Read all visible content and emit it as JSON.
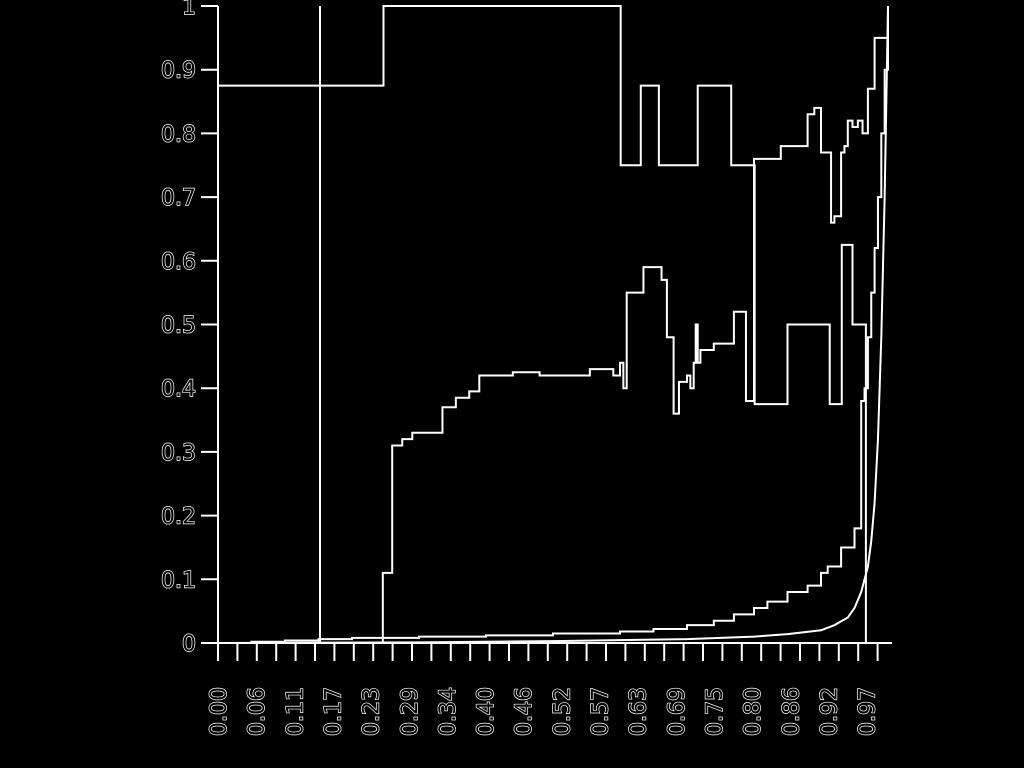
{
  "chart_data": {
    "type": "line",
    "title": "",
    "xlabel": "",
    "ylabel": "",
    "xlim": [
      0.0,
      1.0
    ],
    "ylim": [
      0.0,
      1.0
    ],
    "grid": false,
    "legend": "none",
    "colors": {
      "background": "#000000",
      "foreground": "#ffffff"
    },
    "x_ticks": [
      "0.00",
      "0.06",
      "0.11",
      "0.17",
      "0.23",
      "0.29",
      "0.34",
      "0.40",
      "0.46",
      "0.52",
      "0.57",
      "0.63",
      "0.69",
      "0.75",
      "0.80",
      "0.86",
      "0.92",
      "0.97"
    ],
    "y_ticks": [
      "0",
      "0.1",
      "0.2",
      "0.3",
      "0.4",
      "0.5",
      "0.6",
      "0.7",
      "0.8",
      "0.9",
      "1"
    ],
    "series": [
      {
        "step": true,
        "x": [
          0.0,
          0.154,
          0.155,
          0.246,
          0.247,
          0.6,
          0.601,
          0.63,
          0.631,
          0.657,
          0.658,
          0.715,
          0.716,
          0.765,
          0.766,
          0.8,
          0.801,
          0.849,
          0.85,
          0.912,
          0.913,
          0.93,
          0.931,
          0.946,
          0.947,
          0.966,
          0.967,
          1.0
        ],
        "y": [
          0.875,
          0.875,
          0.875,
          0.875,
          1.0,
          1.0,
          0.75,
          0.75,
          0.875,
          0.875,
          0.75,
          0.75,
          0.875,
          0.875,
          0.75,
          0.75,
          0.375,
          0.375,
          0.5,
          0.5,
          0.375,
          0.375,
          0.625,
          0.625,
          0.5,
          0.5,
          0.0,
          0.0
        ]
      },
      {
        "step": true,
        "x": [
          0.15,
          0.155,
          0.2,
          0.245,
          0.246,
          0.255,
          0.26,
          0.275,
          0.29,
          0.33,
          0.335,
          0.355,
          0.375,
          0.39,
          0.44,
          0.48,
          0.54,
          0.555,
          0.58,
          0.59,
          0.6,
          0.605,
          0.61,
          0.625,
          0.635,
          0.65,
          0.662,
          0.67,
          0.68,
          0.688,
          0.7,
          0.705,
          0.71,
          0.713,
          0.716,
          0.72,
          0.74,
          0.77,
          0.788,
          0.8,
          0.84,
          0.88,
          0.89,
          0.9,
          0.915,
          0.92,
          0.925,
          0.93,
          0.935,
          0.94,
          0.947,
          0.955,
          0.962,
          0.97,
          0.98,
          1.0
        ],
        "y": [
          0.0,
          0.0,
          0.0,
          0.0,
          0.11,
          0.11,
          0.31,
          0.32,
          0.33,
          0.33,
          0.37,
          0.385,
          0.395,
          0.42,
          0.425,
          0.42,
          0.42,
          0.43,
          0.43,
          0.42,
          0.44,
          0.4,
          0.55,
          0.55,
          0.59,
          0.59,
          0.57,
          0.48,
          0.36,
          0.41,
          0.42,
          0.4,
          0.44,
          0.5,
          0.44,
          0.46,
          0.47,
          0.52,
          0.38,
          0.76,
          0.78,
          0.83,
          0.84,
          0.77,
          0.66,
          0.67,
          0.67,
          0.77,
          0.78,
          0.82,
          0.81,
          0.82,
          0.8,
          0.87,
          0.95,
          1.0
        ]
      },
      {
        "step": true,
        "x": [
          0.0,
          0.05,
          0.1,
          0.15,
          0.2,
          0.3,
          0.4,
          0.5,
          0.6,
          0.65,
          0.7,
          0.74,
          0.77,
          0.8,
          0.82,
          0.85,
          0.88,
          0.9,
          0.91,
          0.93,
          0.94,
          0.95,
          0.96,
          0.965,
          0.97,
          0.975,
          0.98,
          0.985,
          0.99,
          0.995,
          1.0
        ],
        "y": [
          0.0,
          0.002,
          0.004,
          0.006,
          0.008,
          0.01,
          0.012,
          0.015,
          0.018,
          0.022,
          0.028,
          0.035,
          0.045,
          0.055,
          0.065,
          0.08,
          0.09,
          0.11,
          0.12,
          0.15,
          0.15,
          0.18,
          0.38,
          0.4,
          0.48,
          0.55,
          0.62,
          0.7,
          0.8,
          0.9,
          1.0
        ]
      },
      {
        "step": false,
        "x": [
          0.0,
          0.3,
          0.5,
          0.7,
          0.8,
          0.85,
          0.9,
          0.92,
          0.94,
          0.95,
          0.96,
          0.97,
          0.975,
          0.98,
          0.985,
          0.99,
          0.995,
          1.0
        ],
        "y": [
          0.0,
          0.001,
          0.003,
          0.006,
          0.01,
          0.014,
          0.02,
          0.028,
          0.04,
          0.055,
          0.08,
          0.12,
          0.16,
          0.22,
          0.32,
          0.48,
          0.7,
          1.0
        ]
      }
    ]
  }
}
